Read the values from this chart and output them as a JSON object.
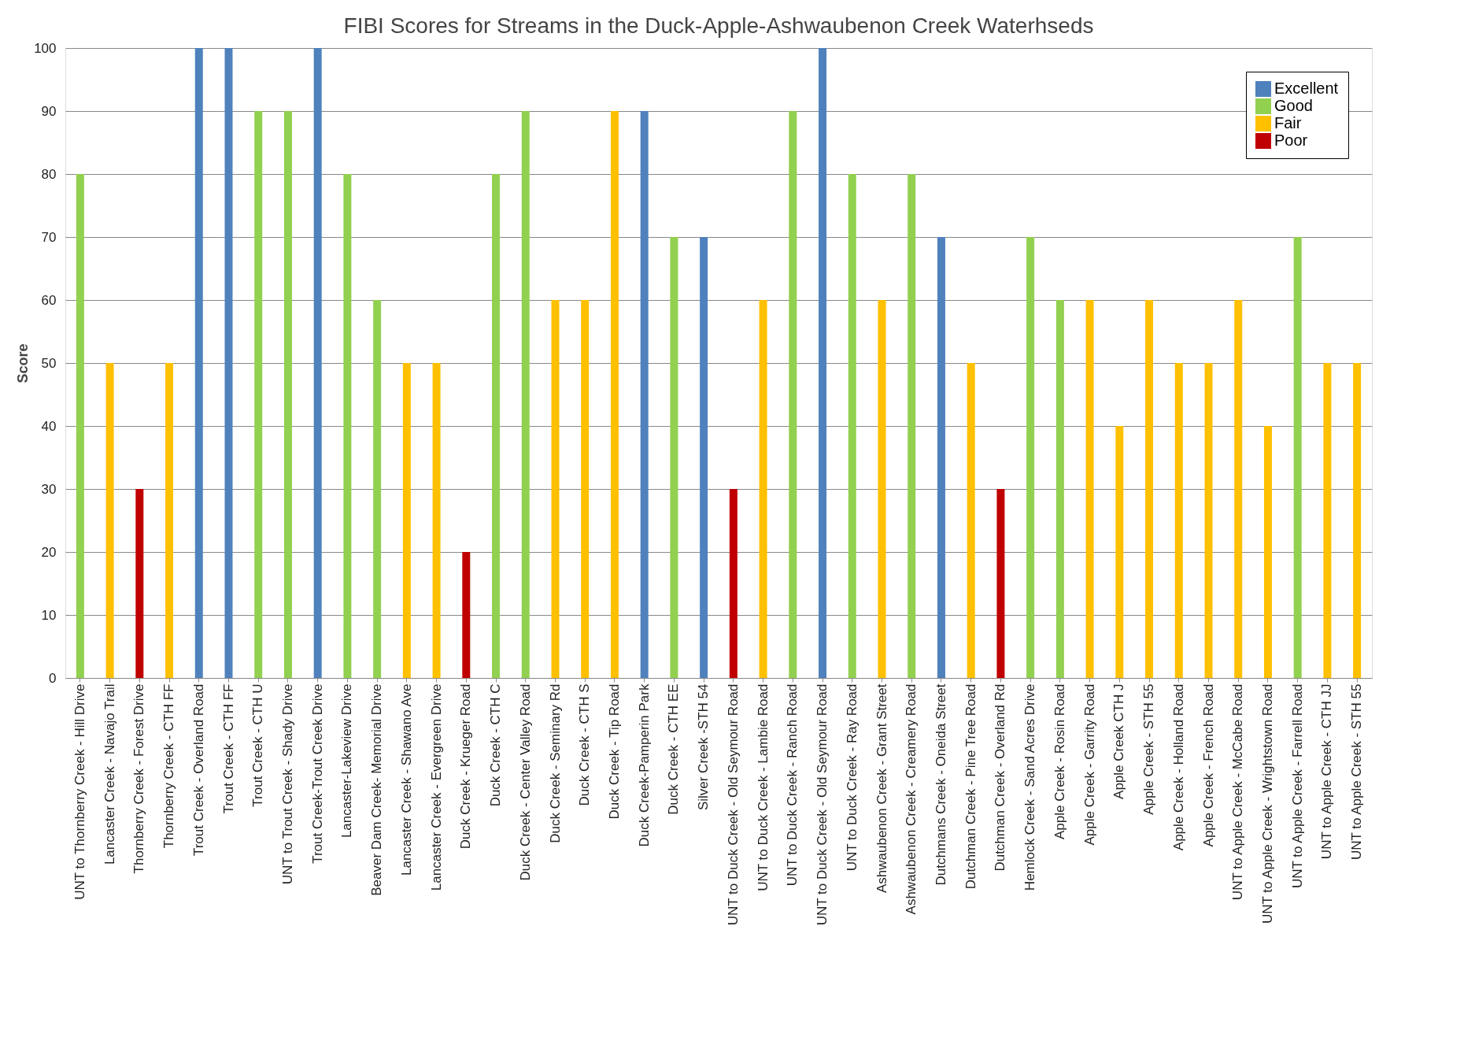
{
  "chart_data": {
    "type": "bar",
    "title": "FIBI Scores for Streams in the Duck-Apple-Ashwaubenon Creek Waterhseds",
    "ylabel": "Score",
    "categories": [
      "UNT to Thornberry Creek - Hill Drive",
      "Lancaster Creek - Navajo Trail",
      "Thornberry Creek -  Forest Drive",
      "Thornberry Creek - CTH FF",
      "Trout Creek - Overland Road",
      "Trout Creek - CTH FF",
      "Trout Creek - CTH U",
      "UNT to Trout Creek - Shady Drive",
      "Trout Creek-Trout Creek Drive",
      "Lancaster-Lakeview Drive",
      "Beaver Dam Creek- Memorial Drive",
      "Lancaster Creek - Shawano Ave",
      "Lancaster Creek - Evergreen Drive",
      "Duck Creek - Krueger Road",
      "Duck Creek - CTH C",
      "Duck Creek - Center Valley Road",
      "Duck Creek - Seminary Rd",
      "Duck Creek - CTH S",
      "Duck Creek - Tip Road",
      "Duck Creek-Pamperin Park",
      "Duck Creek - CTH EE",
      "Silver Creek -STH 54",
      "UNT to Duck Creek - Old Seymour Road",
      "UNT to Duck Creek - Lambie Road",
      "UNT to Duck Creek - Ranch Road",
      "UNT to Duck Creek - Old Seymour Road",
      "UNT to Duck Creek - Ray Road",
      "Ashwaubenon Creek - Grant Street",
      "Ashwaubenon Creek - Creamery Road",
      "Dutchmans Creek - Oneida Street",
      "Dutchman Creek - Pine Tree Road",
      "Dutchman Creek - Overland Rd",
      "Hemlock Creek - Sand Acres Drive",
      "Apple Creek - Rosin Road",
      "Apple Creek - Garrity Road",
      "Apple Creek CTH J",
      "Apple Creek - STH 55",
      "Apple Creek - Holland Road",
      "Apple Creek - French Road",
      "UNT to Apple Creek - McCabe Road",
      "UNT to Apple Creek - Wrightstown Road",
      "UNT to Apple Creek - Farrell Road",
      "UNT to Apple Creek - CTH JJ",
      "UNT to Apple Creek - STH 55"
    ],
    "series": [
      {
        "name": "Excellent",
        "color": "#4f81bd",
        "values": [
          null,
          null,
          null,
          null,
          100,
          100,
          null,
          null,
          100,
          null,
          null,
          null,
          null,
          null,
          null,
          null,
          null,
          null,
          null,
          90,
          null,
          70,
          null,
          null,
          null,
          100,
          null,
          null,
          null,
          70,
          null,
          null,
          null,
          null,
          null,
          null,
          null,
          null,
          null,
          null,
          null,
          null,
          null,
          null
        ]
      },
      {
        "name": "Good",
        "color": "#92d050",
        "values": [
          80,
          null,
          null,
          null,
          null,
          null,
          90,
          90,
          null,
          80,
          60,
          null,
          null,
          null,
          80,
          90,
          null,
          null,
          null,
          null,
          70,
          null,
          null,
          null,
          90,
          null,
          80,
          null,
          80,
          null,
          null,
          null,
          70,
          60,
          null,
          null,
          null,
          null,
          null,
          null,
          null,
          70,
          null,
          null
        ]
      },
      {
        "name": "Fair",
        "color": "#ffc000",
        "values": [
          null,
          50,
          null,
          50,
          null,
          null,
          null,
          null,
          null,
          null,
          null,
          50,
          50,
          null,
          null,
          null,
          60,
          60,
          90,
          null,
          null,
          null,
          null,
          60,
          null,
          null,
          null,
          60,
          null,
          null,
          50,
          null,
          null,
          null,
          60,
          40,
          60,
          50,
          50,
          60,
          40,
          null,
          50,
          50
        ]
      },
      {
        "name": "Poor",
        "color": "#c00000",
        "values": [
          null,
          null,
          30,
          null,
          null,
          null,
          null,
          null,
          null,
          null,
          null,
          null,
          null,
          20,
          null,
          null,
          null,
          null,
          null,
          null,
          null,
          null,
          30,
          null,
          null,
          null,
          null,
          null,
          null,
          null,
          null,
          30,
          null,
          null,
          null,
          null,
          null,
          null,
          null,
          null,
          null,
          null,
          null,
          null
        ]
      }
    ],
    "ylim": [
      0,
      100
    ],
    "yticks": [
      0,
      10,
      20,
      30,
      40,
      50,
      60,
      70,
      80,
      90,
      100
    ],
    "grid": "y",
    "legend": "top right"
  }
}
